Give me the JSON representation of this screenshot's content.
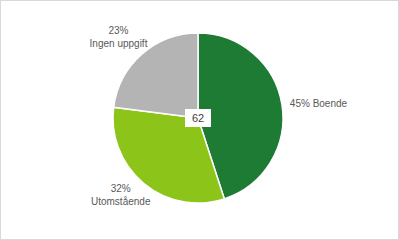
{
  "chart_data": {
    "type": "pie",
    "categories": [
      "Boende",
      "Utomstående",
      "Ingen uppgift"
    ],
    "values": [
      45,
      32,
      23
    ],
    "value_labels": [
      "45%",
      "32%",
      "23%"
    ],
    "colors": [
      "#1e7b34",
      "#8dc41a",
      "#b4b4b4"
    ],
    "data_labels": true,
    "total": 62
  }
}
